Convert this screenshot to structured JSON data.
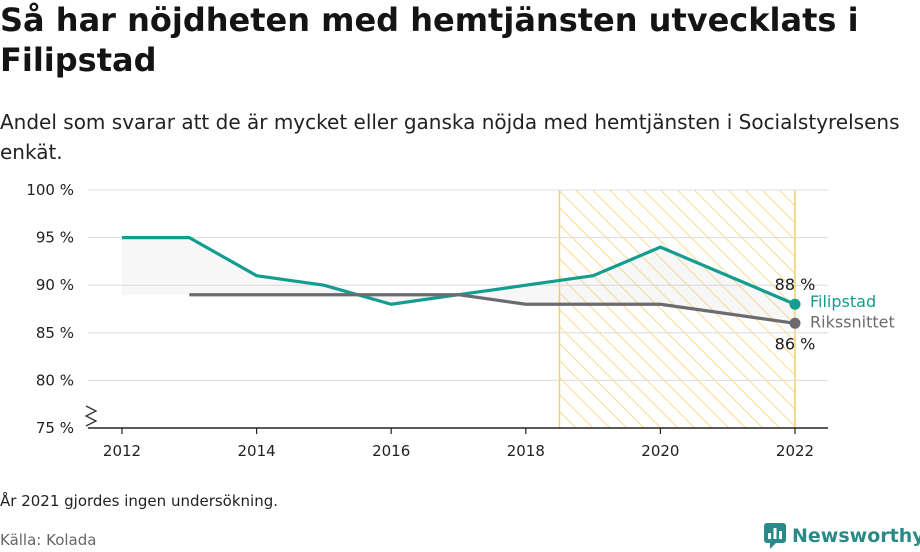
{
  "title": "Så har nöjdheten med hemtjänsten utvecklats i Filipstad",
  "subtitle": "Andel som svarar att de är mycket eller ganska nöjda med hemtjänsten i Socialstyrelsens enkät.",
  "note": "År 2021 gjordes ingen undersökning.",
  "source": "Källa: Kolada",
  "brand": {
    "name": "Newsworthy",
    "icon": "newsworthy-logo-icon"
  },
  "colors": {
    "filipstad": "#139c90",
    "riket": "#6b6b70",
    "highlight": "#f5cf68",
    "grid": "#dcdcdc"
  },
  "chart_data": {
    "type": "line",
    "x_ticks": [
      2012,
      2014,
      2016,
      2018,
      2020,
      2022
    ],
    "y_ticks": [
      75,
      80,
      85,
      90,
      95,
      100
    ],
    "y_tick_labels": [
      "75 %",
      "80 %",
      "85 %",
      "90 %",
      "95 %",
      "100 %"
    ],
    "xlim": [
      2012,
      2022
    ],
    "ylim": [
      75,
      100
    ],
    "axis_break": true,
    "highlight_range": [
      2018.5,
      2022
    ],
    "series": [
      {
        "name": "Filipstad",
        "color": "#139c90",
        "x": [
          2012,
          2013,
          2014,
          2015,
          2016,
          2017,
          2018,
          2019,
          2020,
          2022
        ],
        "y": [
          95,
          95,
          91,
          90,
          88,
          89,
          90,
          91,
          94,
          88
        ],
        "end_label": "88 %"
      },
      {
        "name": "Rikssnittet",
        "color": "#6b6b70",
        "x": [
          2013,
          2014,
          2015,
          2016,
          2017,
          2018,
          2019,
          2020,
          2022
        ],
        "y": [
          89,
          89,
          89,
          89,
          89,
          88,
          88,
          88,
          86
        ],
        "end_label": "86 %"
      }
    ]
  }
}
